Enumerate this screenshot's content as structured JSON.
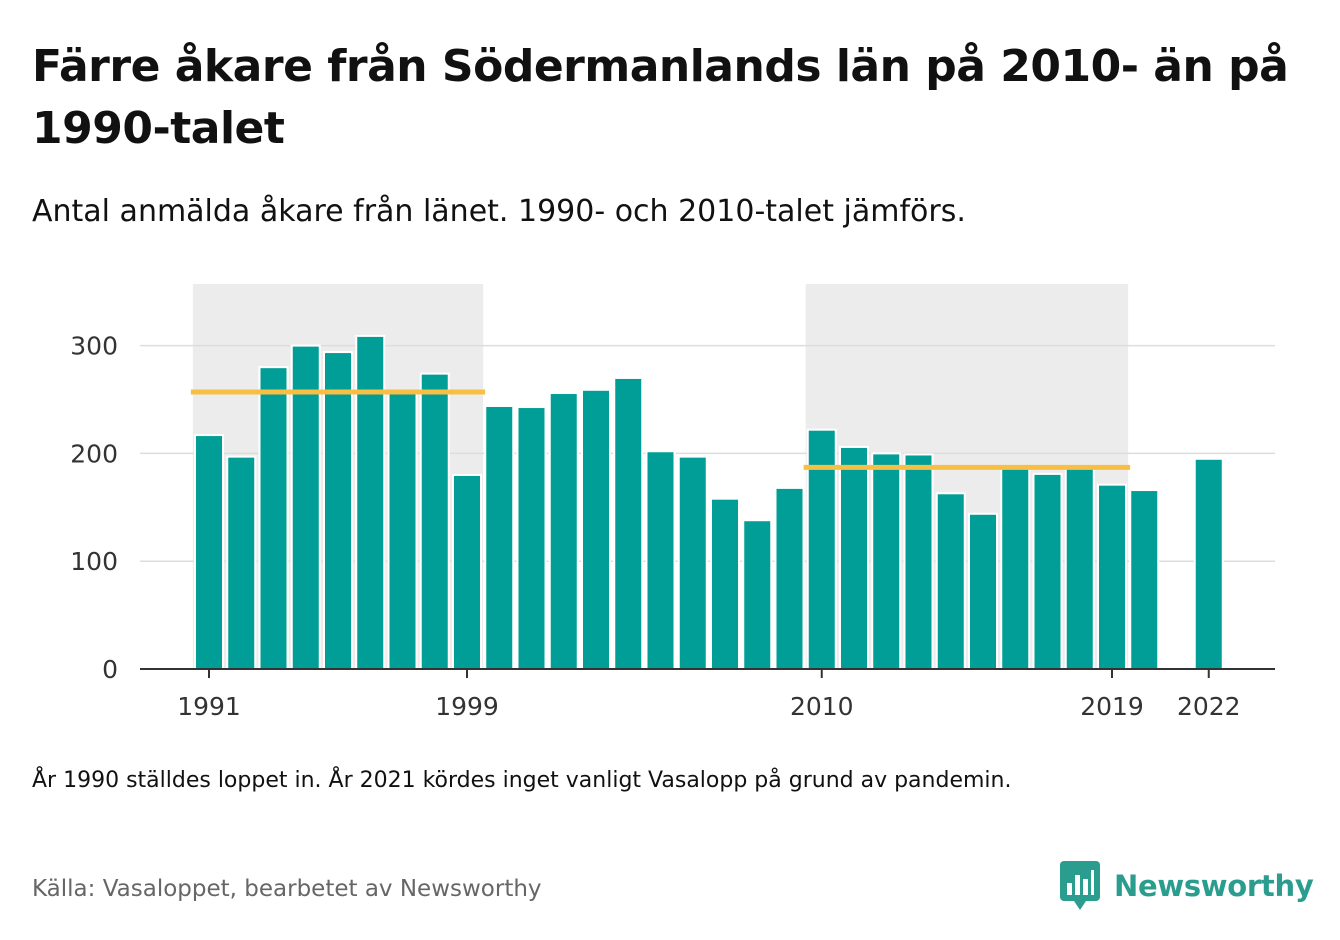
{
  "title": "Färre åkare från Södermanlands län på 2010- än på 1990-talet",
  "subtitle": "Antal anmälda åkare från länet. 1990- och 2010-talet jämförs.",
  "note": "År 1990 ställdes loppet in. År 2021 kördes inget vanligt Vasalopp på grund av pandemin.",
  "source": "Källa: Vasaloppet, bearbetet av Newsworthy",
  "brand": {
    "name": "Newsworthy",
    "logo_icon": "newsworthy-logo-icon"
  },
  "colors": {
    "bar": "#009e96",
    "average_line": "#f9bf45",
    "decade_band": "#ececec",
    "grid": "#dddddd",
    "brand": "#2a9d8f"
  },
  "chart_data": {
    "type": "bar",
    "title": "",
    "xlabel": "",
    "ylabel": "",
    "x_tick_labels": [
      "1991",
      "1999",
      "2010",
      "2019",
      "2022"
    ],
    "y_ticks": [
      0,
      100,
      200,
      300
    ],
    "ylim": [
      0,
      355
    ],
    "grid": true,
    "categories": [
      1991,
      1992,
      1993,
      1994,
      1995,
      1996,
      1997,
      1998,
      1999,
      2000,
      2001,
      2002,
      2003,
      2004,
      2005,
      2006,
      2007,
      2008,
      2009,
      2010,
      2011,
      2012,
      2013,
      2014,
      2015,
      2016,
      2017,
      2018,
      2019,
      2020,
      2021,
      2022
    ],
    "values": [
      217,
      197,
      280,
      300,
      294,
      309,
      257,
      274,
      180,
      244,
      243,
      256,
      259,
      270,
      202,
      197,
      158,
      138,
      168,
      222,
      206,
      200,
      199,
      163,
      144,
      187,
      181,
      187,
      171,
      166,
      null,
      195
    ],
    "highlight_periods": [
      {
        "start": 1991,
        "end": 1999,
        "average": 257
      },
      {
        "start": 2010,
        "end": 2019,
        "average": 187
      }
    ]
  }
}
